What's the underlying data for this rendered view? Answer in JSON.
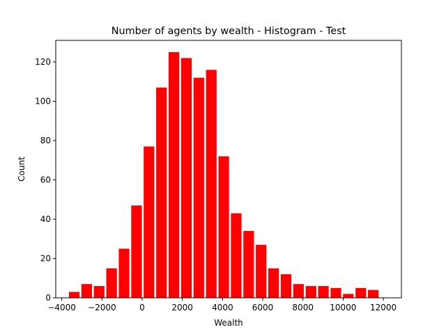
{
  "chart_data": {
    "type": "bar",
    "title": "Number of agents by wealth - Histogram - Test",
    "xlabel": "Wealth",
    "ylabel": "Count",
    "xlim": [
      -4300,
      12900
    ],
    "ylim": [
      0,
      131
    ],
    "xticks": [
      -4000,
      -2000,
      0,
      2000,
      4000,
      6000,
      8000,
      10000,
      12000
    ],
    "xtick_labels": [
      "−4000",
      "−2000",
      "0",
      "2000",
      "4000",
      "6000",
      "8000",
      "10000",
      "12000"
    ],
    "yticks": [
      0,
      20,
      40,
      60,
      80,
      100,
      120
    ],
    "ytick_labels": [
      "0",
      "20",
      "40",
      "60",
      "80",
      "100",
      "120"
    ],
    "bin_width": 620,
    "bars": [
      {
        "x": -3380,
        "value": 3
      },
      {
        "x": -2760,
        "value": 7
      },
      {
        "x": -2140,
        "value": 6
      },
      {
        "x": -1520,
        "value": 15
      },
      {
        "x": -900,
        "value": 25
      },
      {
        "x": -280,
        "value": 47
      },
      {
        "x": 340,
        "value": 77
      },
      {
        "x": 960,
        "value": 107
      },
      {
        "x": 1580,
        "value": 125
      },
      {
        "x": 2200,
        "value": 122
      },
      {
        "x": 2820,
        "value": 112
      },
      {
        "x": 3440,
        "value": 116
      },
      {
        "x": 4060,
        "value": 72
      },
      {
        "x": 4680,
        "value": 43
      },
      {
        "x": 5300,
        "value": 34
      },
      {
        "x": 5920,
        "value": 27
      },
      {
        "x": 6540,
        "value": 15
      },
      {
        "x": 7160,
        "value": 12
      },
      {
        "x": 7780,
        "value": 7
      },
      {
        "x": 8400,
        "value": 6
      },
      {
        "x": 9020,
        "value": 6
      },
      {
        "x": 9640,
        "value": 5
      },
      {
        "x": 10260,
        "value": 2
      },
      {
        "x": 10880,
        "value": 5
      },
      {
        "x": 11500,
        "value": 4
      }
    ],
    "bar_color": "#ff0000",
    "grid": false,
    "legend": "none"
  }
}
